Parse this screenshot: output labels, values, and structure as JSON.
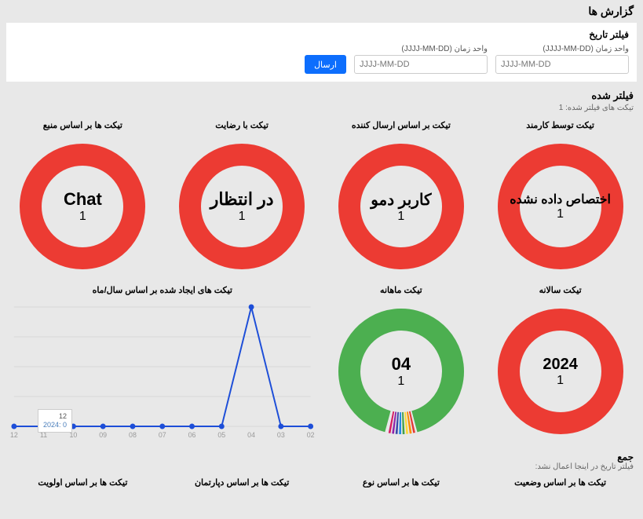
{
  "header": {
    "title": "گزارش ها"
  },
  "filter": {
    "title": "فیلتر تاریخ",
    "field_label": "واحد زمان (JJJJ-MM-DD)",
    "placeholder": "JJJJ-MM-DD",
    "submit": "ارسال"
  },
  "filtered_section": {
    "title": "فیلتر شده",
    "subtitle": "تیکت های فیلتر شده: 1"
  },
  "donut_style": {
    "red": "#ec3b33",
    "green": "#4caf50",
    "ring_width": 28,
    "bg": "#ffffff"
  },
  "row1": [
    {
      "title": "تیکت توسط کارمند",
      "label": "اختصاص داده نشده",
      "value": "1",
      "color": "#ec3b33",
      "label_size": 16
    },
    {
      "title": "تیکت بر اساس ارسال کننده",
      "label": "کاربر دمو",
      "value": "1",
      "color": "#ec3b33",
      "label_size": 20
    },
    {
      "title": "تیکت با رضایت",
      "label": "در انتظار",
      "value": "1",
      "color": "#ec3b33",
      "label_size": 22
    },
    {
      "title": "تیکت ها بر اساس منبع",
      "label": "Chat",
      "value": "1",
      "color": "#ec3b33",
      "label_size": 22
    }
  ],
  "row2": {
    "card_year": {
      "title": "تیکت سالانه",
      "label": "2024",
      "value": "1",
      "color": "#ec3b33"
    },
    "card_month": {
      "title": "تیکت ماهانه",
      "label": "04",
      "value": "1",
      "color": "#4caf50",
      "rainbow": true
    },
    "card_line": {
      "title": "تیکت های ایجاد شده بر اساس سال/ماه",
      "line_color": "#1d4ed8",
      "point_color": "#1d4ed8",
      "grid_color": "#d8d8d8",
      "x_labels": [
        "02",
        "03",
        "04",
        "05",
        "06",
        "07",
        "08",
        "09",
        "10",
        "11",
        "12"
      ],
      "values": [
        0,
        0,
        1,
        0,
        0,
        0,
        0,
        0,
        0,
        0,
        0
      ],
      "tooltip": {
        "top": "12",
        "bottom": "0 :2024"
      }
    }
  },
  "sum_section": {
    "title": "جمع",
    "subtitle": "فیلتر تاریخ در اینجا اعمال نشد:"
  },
  "bottom_titles": [
    "تیکت ها بر اساس وضعیت",
    "تیکت ها بر اساس نوع",
    "تیکت ها بر اساس دپارتمان",
    "تیکت ها بر اساس اولویت"
  ],
  "rainbow_colors": [
    "#e53935",
    "#fb8c00",
    "#fdd835",
    "#43a047",
    "#1e88e5",
    "#3949ab",
    "#8e24aa",
    "#d81b60"
  ]
}
